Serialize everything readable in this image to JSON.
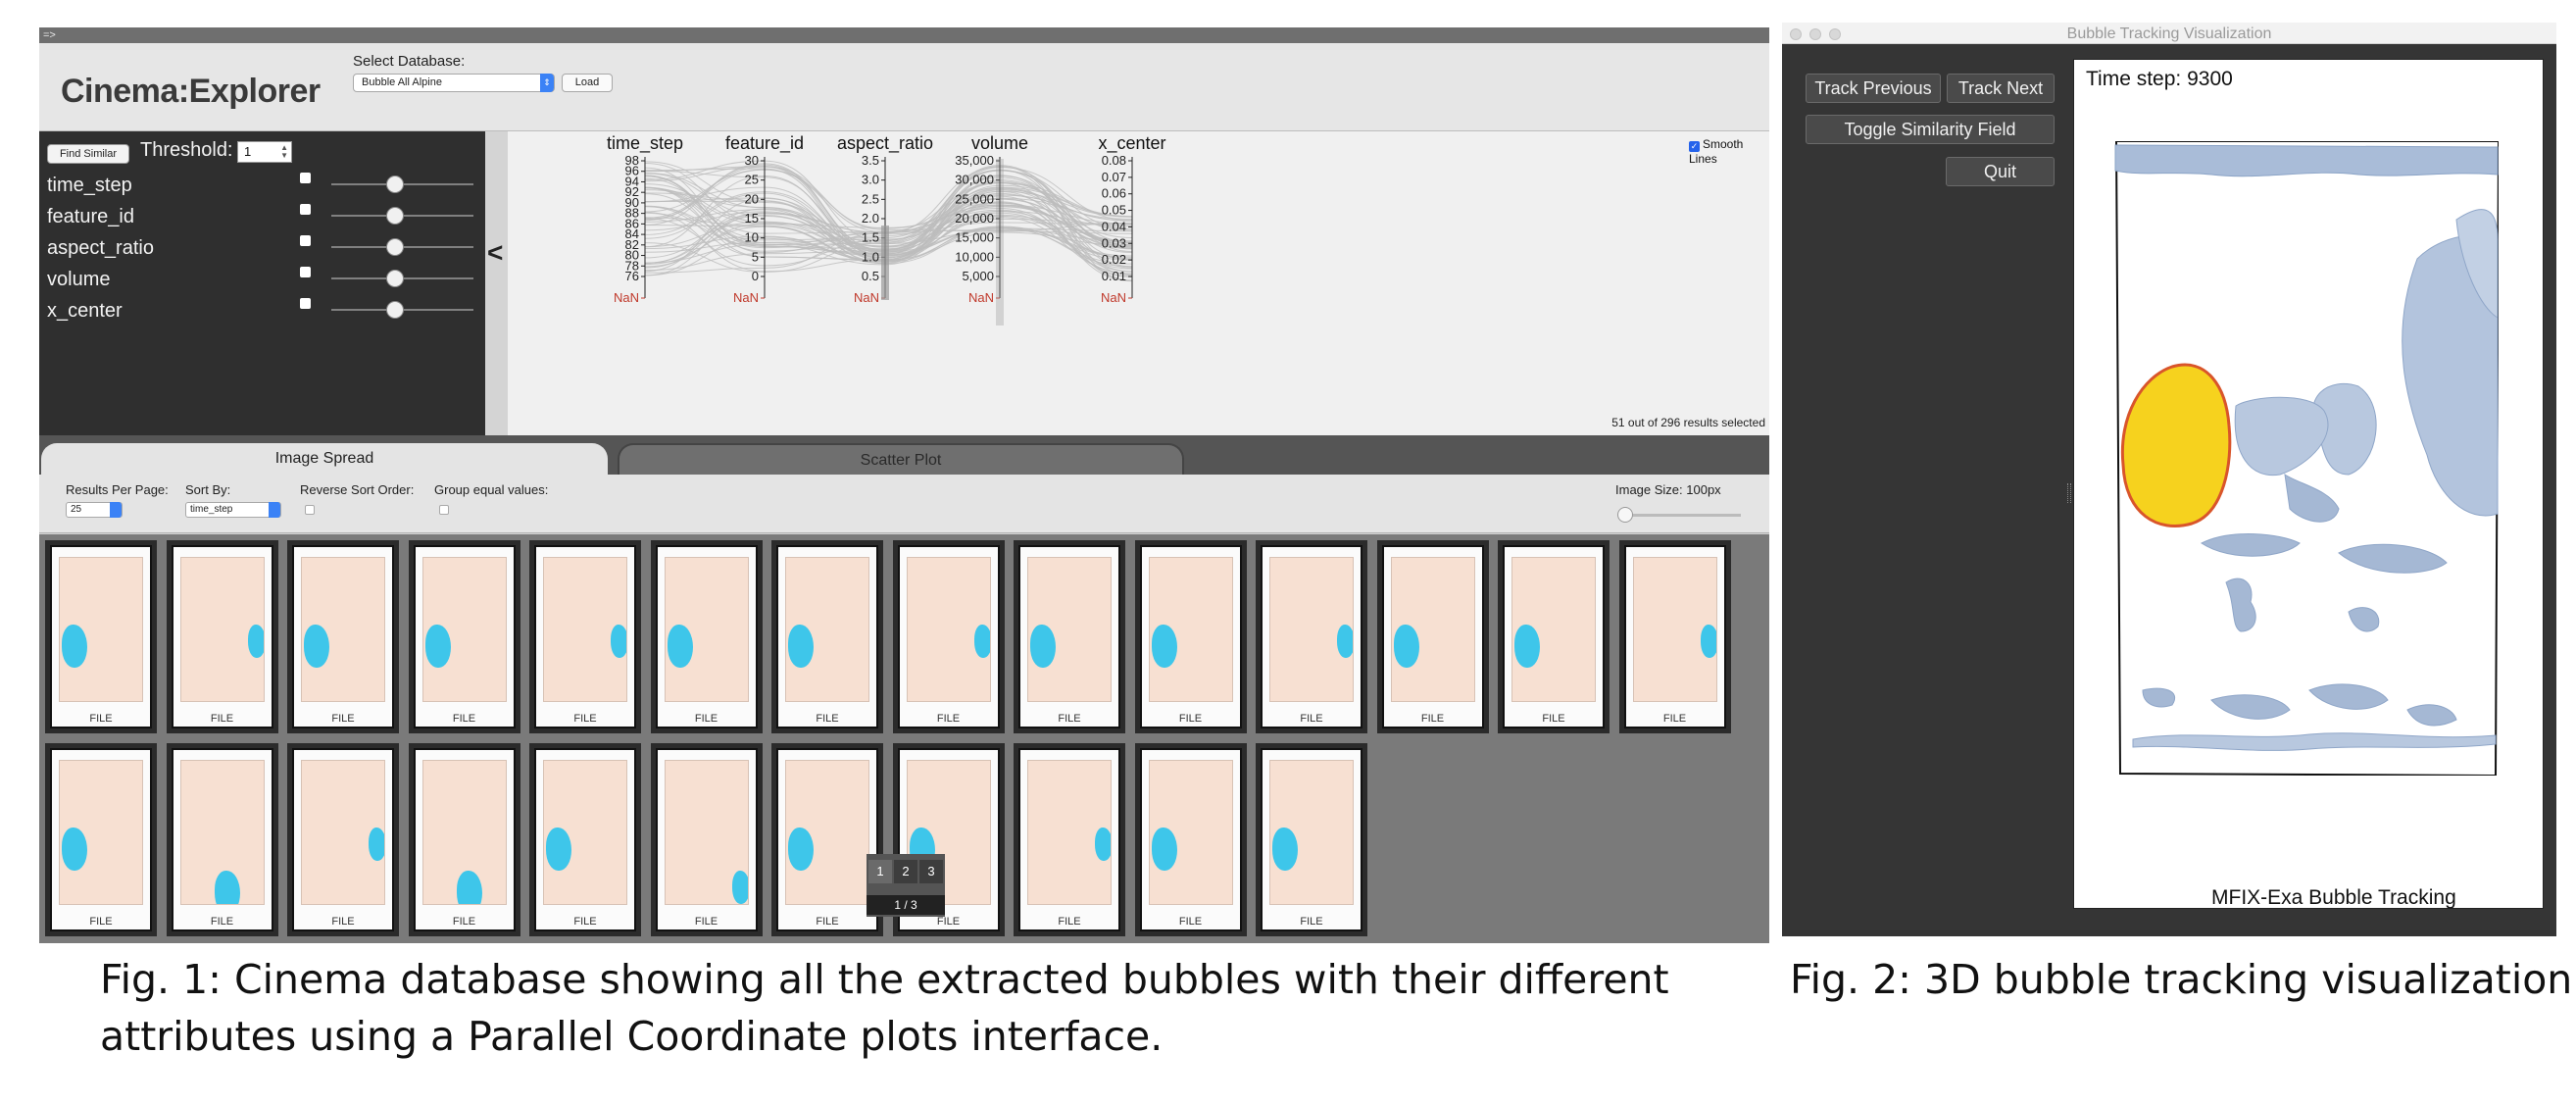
{
  "cinema": {
    "top_strip": "=>",
    "app_title": "Cinema:Explorer",
    "select_db_label": "Select Database:",
    "db_value": "Bubble All Alpine",
    "load_label": "Load",
    "find_similar_label": "Find Similar",
    "threshold_label": "Threshold:",
    "threshold_value": "1",
    "attributes": [
      {
        "name": "time_step",
        "checked": false,
        "slider": 0.45
      },
      {
        "name": "feature_id",
        "checked": false,
        "slider": 0.45
      },
      {
        "name": "aspect_ratio",
        "checked": false,
        "slider": 0.45
      },
      {
        "name": "volume",
        "checked": false,
        "slider": 0.45
      },
      {
        "name": "x_center",
        "checked": false,
        "slider": 0.45
      }
    ],
    "collapse_label": "<",
    "smooth_lines_label": "Smooth Lines",
    "smooth_lines_checked": true,
    "status_text": "51 out of 296 results selected",
    "nan_label": "NaN",
    "tabs": [
      "Image Spread",
      "Scatter Plot"
    ],
    "active_tab": "Image Spread",
    "options": {
      "results_per_page_label": "Results Per Page:",
      "results_per_page_value": "25",
      "sort_by_label": "Sort By:",
      "sort_by_value": "time_step",
      "reverse_sort_label": "Reverse Sort Order:",
      "group_equal_label": "Group equal values:",
      "image_size_label": "Image Size: 100px"
    },
    "file_label": "FILE",
    "pager": {
      "pages": [
        "1",
        "2",
        "3"
      ],
      "current": "1",
      "info": "1 / 3"
    },
    "colors": {
      "accent": "#3b82f6",
      "nan": "#c0392b",
      "bubble": "#3ec6ea",
      "panel": "#2f2f2f"
    }
  },
  "chart_data": {
    "type": "parallel_coordinates",
    "axes": [
      {
        "name": "time_step",
        "ticks": [
          "98",
          "96",
          "94",
          "92",
          "90",
          "88",
          "86",
          "84",
          "82",
          "80",
          "78",
          "76"
        ],
        "range": [
          75,
          99
        ]
      },
      {
        "name": "feature_id",
        "ticks": [
          "30",
          "25",
          "20",
          "15",
          "10",
          "5",
          "0"
        ],
        "range": [
          0,
          31
        ]
      },
      {
        "name": "aspect_ratio",
        "ticks": [
          "3.5",
          "3.0",
          "2.5",
          "2.0",
          "1.5",
          "1.0",
          "0.5"
        ],
        "range": [
          0,
          3.7
        ]
      },
      {
        "name": "volume",
        "ticks": [
          "35,000",
          "30,000",
          "25,000",
          "20,000",
          "15,000",
          "10,000",
          "5,000"
        ],
        "range": [
          0,
          38000
        ]
      },
      {
        "name": "x_center",
        "ticks": [
          "0.08",
          "0.07",
          "0.06",
          "0.05",
          "0.04",
          "0.03",
          "0.02",
          "0.01"
        ],
        "range": [
          0,
          0.085
        ]
      }
    ],
    "selected": 51,
    "total": 296
  },
  "bubble": {
    "window_title": "Bubble Tracking Visualization",
    "buttons": [
      "Track Previous",
      "Track Next",
      "Toggle Similarity Field",
      "Quit"
    ],
    "timestep_label": "Time step: 9300",
    "footer_label": "MFIX-Exa Bubble Tracking",
    "colors": {
      "tracked": "#f6d21e",
      "tracked_outline": "#d9552a",
      "others": "#9fb4d3",
      "background": "#353535"
    }
  },
  "captions": {
    "fig1": "Fig. 1: Cinema database showing all the extracted bubbles with their different attributes using a Parallel Coordinate plots interface.",
    "fig2": "Fig. 2: 3D bubble tracking visualization."
  }
}
